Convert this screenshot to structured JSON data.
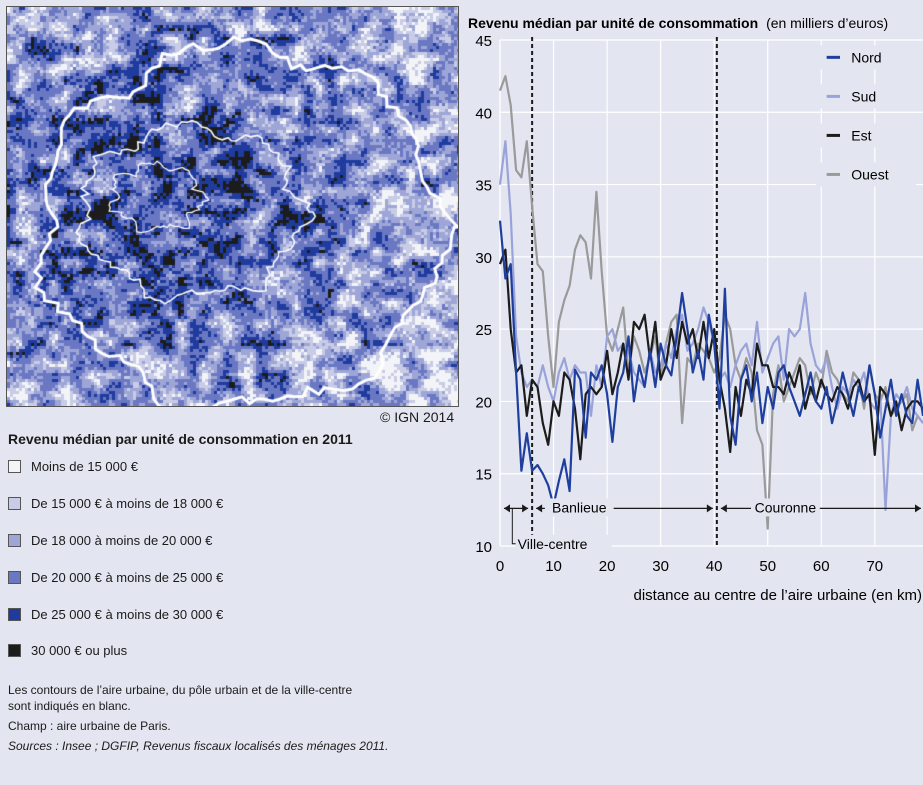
{
  "map": {
    "credit": "© IGN 2014"
  },
  "legend": {
    "title": "Revenu médian par unité de consommation en 2011",
    "items": [
      {
        "label": "Moins de 15 000  €",
        "color": "#f3f4f8"
      },
      {
        "label": "De 15 000  € à moins de 18 000  €",
        "color": "#c8cce6"
      },
      {
        "label": "De 18 000  à moins de 20 000 €",
        "color": "#9ea6d7"
      },
      {
        "label": "De 20 000  € à moins de 25 000 €",
        "color": "#6a78c4"
      },
      {
        "label": "De 25 000  € à moins de 30 000 €",
        "color": "#1f3b9e"
      },
      {
        "label": "30 000  € ou plus",
        "color": "#1c1c1c"
      }
    ]
  },
  "notes": {
    "contours_line1": "Les contours de l’aire urbaine, du pôle urbain et de la ville-centre",
    "contours_line2": "sont indiqués en blanc.",
    "champ": "Champ : aire urbaine de Paris.",
    "sources": "Sources : Insee ; DGFIP, Revenus fiscaux localisés des ménages 2011."
  },
  "chart_data": {
    "type": "line",
    "title": "Revenu médian par unité de consommation",
    "title_suffix": "(en milliers d’euros)",
    "xlabel": "distance au centre de l’aire urbaine (en km)",
    "xlim": [
      0,
      79
    ],
    "ylim": [
      10,
      45
    ],
    "xticks": [
      0,
      10,
      20,
      30,
      40,
      50,
      60,
      70
    ],
    "yticks": [
      10,
      15,
      20,
      25,
      30,
      35,
      40,
      45
    ],
    "vlines": [
      6,
      40.5
    ],
    "zones": [
      {
        "label": "Ville-centre",
        "from": 0,
        "to": 6
      },
      {
        "label": "Banlieue",
        "from": 6,
        "to": 40.5
      },
      {
        "label": "Couronne",
        "from": 40.5,
        "to": 79
      }
    ],
    "legend_position": "top-right",
    "x": [
      0,
      1,
      2,
      3,
      4,
      5,
      6,
      7,
      8,
      9,
      10,
      11,
      12,
      13,
      14,
      15,
      16,
      17,
      18,
      19,
      20,
      21,
      22,
      23,
      24,
      25,
      26,
      27,
      28,
      29,
      30,
      31,
      32,
      33,
      34,
      35,
      36,
      37,
      38,
      39,
      40,
      41,
      42,
      43,
      44,
      45,
      46,
      47,
      48,
      49,
      50,
      51,
      52,
      53,
      54,
      55,
      56,
      57,
      58,
      59,
      60,
      61,
      62,
      63,
      64,
      65,
      66,
      67,
      68,
      69,
      70,
      71,
      72,
      73,
      74,
      75,
      76,
      77,
      78,
      79
    ],
    "series": [
      {
        "name": "Nord",
        "color": "#1f3f9e",
        "values": [
          32.5,
          28.5,
          29.5,
          22.0,
          15.2,
          17.8,
          15.2,
          15.6,
          15.0,
          14.2,
          12.8,
          14.5,
          16.0,
          13.8,
          22.2,
          21.5,
          17.5,
          22.0,
          21.5,
          22.5,
          20.5,
          17.2,
          21.0,
          22.0,
          24.5,
          20.0,
          22.5,
          21.0,
          23.5,
          21.0,
          24.0,
          22.5,
          21.8,
          24.5,
          27.5,
          25.0,
          22.0,
          23.5,
          21.5,
          26.0,
          24.0,
          19.5,
          27.8,
          19.0,
          17.0,
          21.5,
          22.5,
          20.0,
          22.0,
          18.5,
          21.0,
          19.5,
          22.0,
          22.5,
          21.0,
          20.0,
          19.0,
          20.5,
          22.0,
          20.0,
          19.5,
          21.0,
          18.5,
          20.0,
          22.0,
          20.5,
          19.0,
          21.0,
          20.0,
          22.5,
          20.5,
          17.5,
          19.5,
          21.5,
          19.0,
          20.5,
          19.0,
          18.5,
          21.5,
          19.0
        ]
      },
      {
        "name": "Sud",
        "color": "#9aa3d9",
        "values": [
          35.0,
          38.0,
          33.0,
          24.5,
          22.0,
          21.0,
          21.5,
          21.0,
          22.5,
          21.0,
          20.0,
          22.0,
          23.0,
          21.5,
          22.5,
          22.0,
          22.0,
          19.0,
          22.5,
          21.0,
          24.5,
          25.0,
          23.5,
          24.0,
          23.5,
          22.0,
          21.5,
          21.0,
          23.5,
          22.0,
          22.5,
          24.0,
          23.0,
          25.0,
          26.0,
          23.5,
          24.0,
          25.0,
          26.5,
          25.5,
          24.0,
          21.5,
          22.0,
          21.0,
          22.5,
          23.5,
          24.0,
          22.5,
          25.5,
          22.0,
          23.0,
          24.0,
          24.5,
          21.5,
          25.0,
          24.5,
          25.0,
          27.5,
          24.0,
          22.5,
          22.0,
          23.0,
          21.0,
          19.5,
          21.0,
          20.5,
          21.5,
          21.0,
          22.0,
          20.0,
          19.5,
          20.5,
          12.5,
          19.0,
          20.5,
          20.0,
          21.0,
          19.5,
          19.0,
          18.5
        ]
      },
      {
        "name": "Est",
        "color": "#1c1c1c",
        "values": [
          29.5,
          30.5,
          25.0,
          22.0,
          22.5,
          19.0,
          21.5,
          21.0,
          18.5,
          17.0,
          20.0,
          19.0,
          22.0,
          21.5,
          19.5,
          16.0,
          20.5,
          21.0,
          20.5,
          21.0,
          23.5,
          20.5,
          22.0,
          24.0,
          21.5,
          25.5,
          25.0,
          26.0,
          23.0,
          25.5,
          21.5,
          22.5,
          25.0,
          23.0,
          25.5,
          24.0,
          25.0,
          23.0,
          25.5,
          23.0,
          25.0,
          21.5,
          19.5,
          16.5,
          21.0,
          19.0,
          21.5,
          20.5,
          24.0,
          22.5,
          22.5,
          21.0,
          21.0,
          20.5,
          22.0,
          21.0,
          22.5,
          19.5,
          21.0,
          20.0,
          21.5,
          20.5,
          20.0,
          21.0,
          20.5,
          19.5,
          21.0,
          21.5,
          20.0,
          20.5,
          16.3,
          21.0,
          20.5,
          19.0,
          20.0,
          18.0,
          19.5,
          20.0,
          20.0,
          19.5
        ]
      },
      {
        "name": "Ouest",
        "color": "#9a9a9a",
        "values": [
          41.5,
          42.5,
          40.5,
          36.0,
          35.5,
          38.0,
          33.5,
          29.5,
          29.0,
          24.5,
          21.0,
          25.5,
          27.0,
          28.0,
          30.5,
          31.5,
          31.0,
          28.5,
          34.5,
          29.0,
          24.5,
          23.5,
          25.0,
          26.5,
          22.0,
          24.5,
          23.5,
          22.0,
          23.0,
          24.5,
          21.5,
          24.0,
          25.5,
          26.0,
          18.5,
          23.0,
          22.5,
          24.0,
          23.5,
          23.0,
          22.0,
          23.0,
          26.0,
          25.0,
          22.5,
          21.5,
          23.0,
          22.0,
          18.0,
          17.0,
          11.2,
          20.5,
          22.5,
          20.0,
          21.0,
          22.0,
          23.0,
          22.5,
          20.5,
          22.0,
          21.0,
          23.5,
          22.0,
          21.5,
          20.5,
          20.0,
          22.0,
          21.5,
          19.5,
          22.5,
          20.5,
          20.0,
          21.0,
          19.0,
          19.5,
          20.0,
          20.5,
          18.0,
          19.0,
          18.5
        ]
      }
    ]
  }
}
